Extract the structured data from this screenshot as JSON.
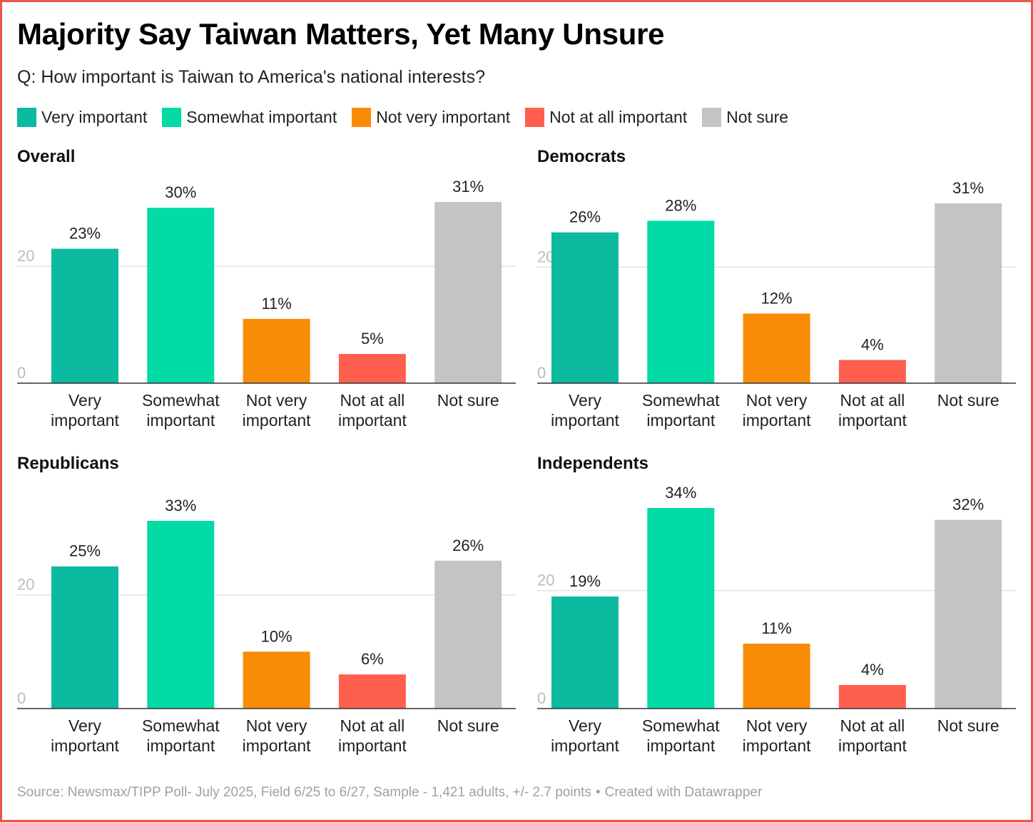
{
  "title": "Majority Say Taiwan Matters, Yet Many Unsure",
  "subtitle": "Q: How important is Taiwan to America's national interests?",
  "legend": [
    {
      "label": "Very important",
      "color": "#0cbaa0"
    },
    {
      "label": "Somewhat important",
      "color": "#02dba6"
    },
    {
      "label": "Not very important",
      "color": "#f98c06"
    },
    {
      "label": "Not at all important",
      "color": "#ff5f4e"
    },
    {
      "label": "Not sure",
      "color": "#c4c4c4"
    }
  ],
  "chart_data": [
    {
      "type": "bar",
      "title": "Overall",
      "categories": [
        [
          "Very",
          "important"
        ],
        [
          "Somewhat",
          "important"
        ],
        [
          "Not very",
          "important"
        ],
        [
          "Not at all",
          "important"
        ],
        [
          "Not sure"
        ]
      ],
      "values": [
        23,
        30,
        11,
        5,
        31
      ],
      "value_labels": [
        "23%",
        "30%",
        "11%",
        "5%",
        "31%"
      ],
      "ylim": [
        0,
        31
      ],
      "yticks": [
        0,
        20
      ],
      "grid": true
    },
    {
      "type": "bar",
      "title": "Democrats",
      "categories": [
        [
          "Very",
          "important"
        ],
        [
          "Somewhat",
          "important"
        ],
        [
          "Not very",
          "important"
        ],
        [
          "Not at all",
          "important"
        ],
        [
          "Not sure"
        ]
      ],
      "values": [
        26,
        28,
        12,
        4,
        31
      ],
      "value_labels": [
        "26%",
        "28%",
        "12%",
        "4%",
        "31%"
      ],
      "ylim": [
        0,
        31
      ],
      "yticks": [
        0,
        20
      ],
      "grid": true
    },
    {
      "type": "bar",
      "title": "Republicans",
      "categories": [
        [
          "Very",
          "important"
        ],
        [
          "Somewhat",
          "important"
        ],
        [
          "Not very",
          "important"
        ],
        [
          "Not at all",
          "important"
        ],
        [
          "Not sure"
        ]
      ],
      "values": [
        25,
        33,
        10,
        6,
        26
      ],
      "value_labels": [
        "25%",
        "33%",
        "10%",
        "6%",
        "26%"
      ],
      "ylim": [
        0,
        34
      ],
      "yticks": [
        0,
        20
      ],
      "grid": true
    },
    {
      "type": "bar",
      "title": "Independents",
      "categories": [
        [
          "Very",
          "important"
        ],
        [
          "Somewhat",
          "important"
        ],
        [
          "Not very",
          "important"
        ],
        [
          "Not at all",
          "important"
        ],
        [
          "Not sure"
        ]
      ],
      "values": [
        19,
        34,
        11,
        4,
        32
      ],
      "value_labels": [
        "19%",
        "34%",
        "11%",
        "4%",
        "32%"
      ],
      "ylim": [
        0,
        34
      ],
      "yticks": [
        0,
        20
      ],
      "grid": true
    }
  ],
  "source": {
    "text": "Source: Newsmax/TIPP Poll- July 2025, Field 6/25 to 6/27, Sample - 1,421 adults, +/- 2.7 points",
    "separator": "•",
    "credit": "Created with Datawrapper"
  }
}
